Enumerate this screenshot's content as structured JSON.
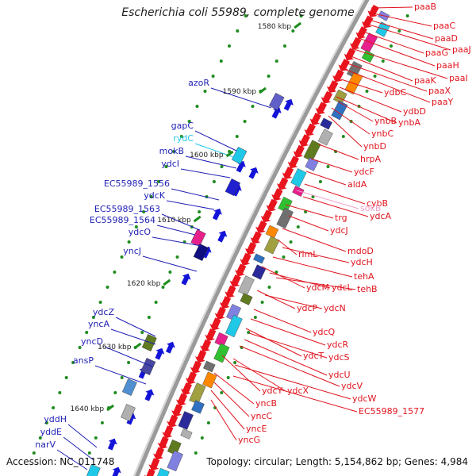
{
  "title": "Escherichia coli 55989, complete genome",
  "footer": {
    "accession": "Accession: NC_011748",
    "topology": "Topology: circular; Length: 5,154,862 bp; Genes: 4,984"
  },
  "kbp_labels": [
    "1580 kbp",
    "1590 kbp",
    "1600 kbp",
    "1610 kbp",
    "1620 kbp",
    "1630 kbp",
    "1640 kbp"
  ],
  "left_genes": [
    {
      "name": "azoR",
      "color": "#1f1fb4"
    },
    {
      "name": "gapC",
      "color": "#1f1fb4"
    },
    {
      "name": "rydC",
      "color": "#20c8e8"
    },
    {
      "name": "mokB",
      "color": "#1f1fb4"
    },
    {
      "name": "ydcI",
      "color": "#1f1fb4"
    },
    {
      "name": "EC55989_1556",
      "color": "#1f1fb4"
    },
    {
      "name": "ydcK",
      "color": "#1f1fb4"
    },
    {
      "name": "EC55989_1563",
      "color": "#1f1fb4"
    },
    {
      "name": "EC55989_1564",
      "color": "#1f1fb4"
    },
    {
      "name": "ydcO",
      "color": "#1f1fb4"
    },
    {
      "name": "yncJ",
      "color": "#1f1fb4"
    },
    {
      "name": "ydcZ",
      "color": "#1f1fb4"
    },
    {
      "name": "yncA",
      "color": "#1f1fb4"
    },
    {
      "name": "yncD",
      "color": "#1f1fb4"
    },
    {
      "name": "ansP",
      "color": "#1f1fb4"
    },
    {
      "name": "yddH",
      "color": "#1f1fb4"
    },
    {
      "name": "yddE",
      "color": "#1f1fb4"
    },
    {
      "name": "narV",
      "color": "#1f1fb4"
    }
  ],
  "right_genes": [
    {
      "name": "paaB",
      "color": "#e0141e"
    },
    {
      "name": "paaC",
      "color": "#e0141e"
    },
    {
      "name": "paaD",
      "color": "#e0141e"
    },
    {
      "name": "paaJ",
      "color": "#e0141e"
    },
    {
      "name": "paaG",
      "color": "#e0141e"
    },
    {
      "name": "paaH",
      "color": "#e0141e"
    },
    {
      "name": "paaI",
      "color": "#e0141e"
    },
    {
      "name": "paaK",
      "color": "#e0141e"
    },
    {
      "name": "paaX",
      "color": "#e0141e"
    },
    {
      "name": "paaY",
      "color": "#e0141e"
    },
    {
      "name": "ydbC",
      "color": "#e0141e"
    },
    {
      "name": "ydbD",
      "color": "#e0141e"
    },
    {
      "name": "ynbA",
      "color": "#e0141e"
    },
    {
      "name": "ynbB",
      "color": "#e0141e"
    },
    {
      "name": "ynbC",
      "color": "#e0141e"
    },
    {
      "name": "ynbD",
      "color": "#e0141e"
    },
    {
      "name": "hrpA",
      "color": "#e0141e"
    },
    {
      "name": "ydcF",
      "color": "#e0141e"
    },
    {
      "name": "aldA",
      "color": "#e0141e"
    },
    {
      "name": "cybB",
      "color": "#e0141e"
    },
    {
      "name": "sokB",
      "color": "#f0a0c8"
    },
    {
      "name": "ydcA",
      "color": "#e0141e"
    },
    {
      "name": "trg",
      "color": "#e0141e"
    },
    {
      "name": "ydcJ",
      "color": "#e0141e"
    },
    {
      "name": "mdoD",
      "color": "#e0141e"
    },
    {
      "name": "rimL",
      "color": "#e0141e"
    },
    {
      "name": "ydcH",
      "color": "#e0141e"
    },
    {
      "name": "tehA",
      "color": "#e0141e"
    },
    {
      "name": "ydcM",
      "color": "#e0141e"
    },
    {
      "name": "ydcL",
      "color": "#e0141e"
    },
    {
      "name": "tehB",
      "color": "#e0141e"
    },
    {
      "name": "ydcP",
      "color": "#e0141e"
    },
    {
      "name": "ydcN",
      "color": "#e0141e"
    },
    {
      "name": "ydcQ",
      "color": "#e0141e"
    },
    {
      "name": "ydcR",
      "color": "#e0141e"
    },
    {
      "name": "ydcT",
      "color": "#e0141e"
    },
    {
      "name": "ydcS",
      "color": "#e0141e"
    },
    {
      "name": "ydcU",
      "color": "#e0141e"
    },
    {
      "name": "ydcV",
      "color": "#e0141e"
    },
    {
      "name": "ydcY",
      "color": "#e0141e"
    },
    {
      "name": "ydcX",
      "color": "#e0141e"
    },
    {
      "name": "ydcW",
      "color": "#e0141e"
    },
    {
      "name": "yncB",
      "color": "#e0141e"
    },
    {
      "name": "EC55989_1577",
      "color": "#e0141e"
    },
    {
      "name": "yncC",
      "color": "#e0141e"
    },
    {
      "name": "yncE",
      "color": "#e0141e"
    },
    {
      "name": "yncG",
      "color": "#e0141e"
    }
  ],
  "colors": {
    "forward_strand": "#e0141e",
    "reverse_strand": "#1f1fb4",
    "backbone": "#888888",
    "tick": "#1e8c1e"
  }
}
